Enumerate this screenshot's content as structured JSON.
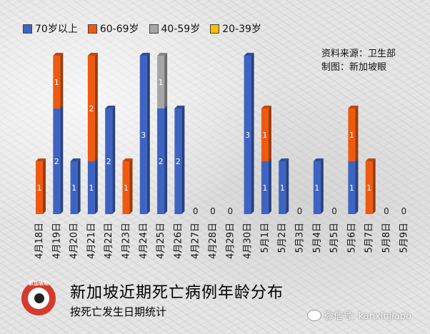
{
  "legend": [
    {
      "label": "70岁以上",
      "color": "#3d64c2"
    },
    {
      "label": "60-69岁",
      "color": "#f05a10"
    },
    {
      "label": "40-59岁",
      "color": "#a6a6a6"
    },
    {
      "label": "20-39岁",
      "color": "#f5c000"
    }
  ],
  "source": {
    "line1": "资料来源：卫生部",
    "line2": "制图：新加坡眼"
  },
  "logo_text": "新加坡眼",
  "title": "新加坡近期死亡病例年龄分布",
  "subtitle": "按死亡发生日期统计",
  "wechat": "微信号: kanxinjiapo",
  "chart_data": {
    "type": "bar",
    "stacked": true,
    "categories": [
      "4月18日",
      "4月19日",
      "4月20日",
      "4月21日",
      "4月22日",
      "4月23日",
      "4月24日",
      "4月25日",
      "4月26日",
      "4月27日",
      "4月28日",
      "4月29日",
      "4月30日",
      "5月1日",
      "5月2日",
      "5月3日",
      "5月4日",
      "5月5日",
      "5月6日",
      "5月7日",
      "5月8日",
      "5月9日"
    ],
    "series": [
      {
        "name": "70岁以上",
        "color": "#3d64c2",
        "values": [
          0,
          2,
          1,
          1,
          2,
          0,
          3,
          2,
          2,
          0,
          0,
          0,
          3,
          1,
          1,
          0,
          1,
          0,
          1,
          0,
          0,
          0
        ]
      },
      {
        "name": "60-69岁",
        "color": "#f05a10",
        "values": [
          1,
          1,
          0,
          2,
          0,
          1,
          0,
          0,
          0,
          0,
          0,
          0,
          0,
          1,
          0,
          0,
          0,
          0,
          1,
          1,
          0,
          0
        ]
      },
      {
        "name": "40-59岁",
        "color": "#a6a6a6",
        "values": [
          0,
          0,
          0,
          0,
          0,
          0,
          0,
          1,
          0,
          0,
          0,
          0,
          0,
          0,
          0,
          0,
          0,
          0,
          0,
          0,
          0,
          0
        ]
      },
      {
        "name": "20-39岁",
        "color": "#f5c000",
        "values": [
          0,
          0,
          0,
          0,
          0,
          0,
          0,
          0,
          0,
          0,
          0,
          0,
          0,
          0,
          0,
          0,
          0,
          0,
          0,
          0,
          0,
          0
        ]
      }
    ],
    "ylim": [
      0,
      3
    ],
    "grid": false,
    "legend_position": "top-left"
  }
}
